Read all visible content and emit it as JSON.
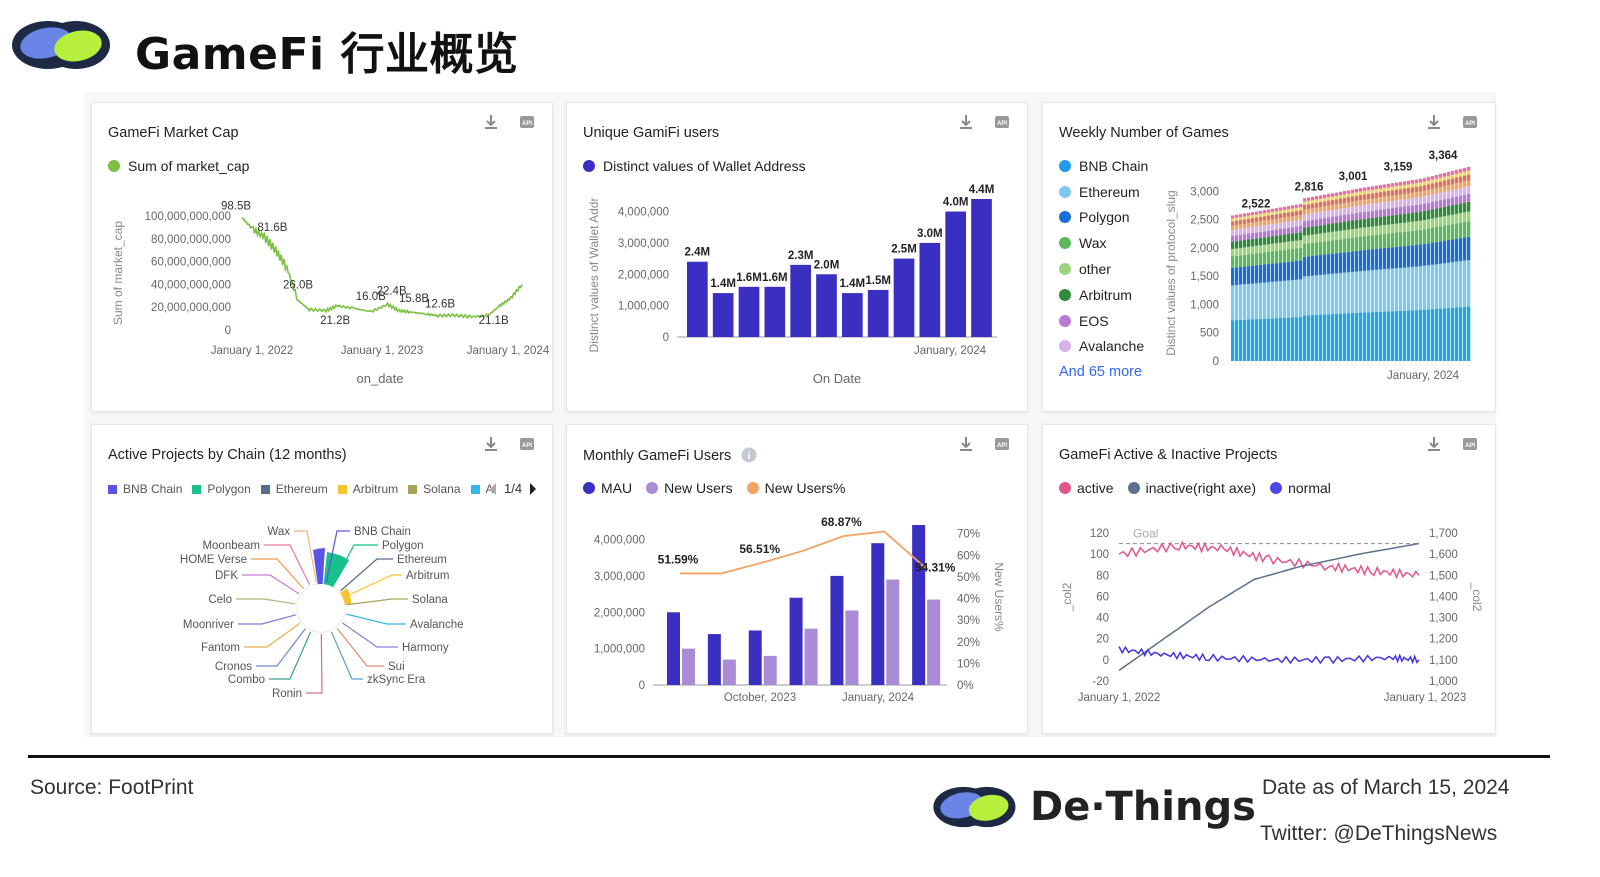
{
  "header": {
    "title": "GameFi 行业概览"
  },
  "footer": {
    "source": "Source: FootPrint",
    "brand": "De·Things",
    "date": "Date as of March 15, 2024",
    "twitter": "Twitter: @DeThingsNews"
  },
  "colors": {
    "green": "#7bc043",
    "indigo": "#3a2fc0",
    "lavender": "#a98bd6",
    "orange": "#f4a261",
    "pink": "#e0578a",
    "slate": "#5d6f8f",
    "blue": "#4433e0"
  },
  "icons": [
    "download-icon",
    "api-icon",
    "info-icon",
    "pager-prev-icon",
    "pager-next-icon"
  ],
  "cards": {
    "market_cap": {
      "title": "GameFi Market Cap",
      "legend": [
        {
          "label": "Sum of market_cap",
          "color": "#7bc043"
        }
      ]
    },
    "unique_users": {
      "title": "Unique GamiFi users",
      "legend": [
        {
          "label": "Distinct values of Wallet Address",
          "color": "#3a2fc0"
        }
      ]
    },
    "weekly_games": {
      "title": "Weekly Number of Games",
      "legend": [
        {
          "label": "BNB Chain",
          "color": "#1f9be8"
        },
        {
          "label": "Ethereum",
          "color": "#7ec8f2"
        },
        {
          "label": "Polygon",
          "color": "#1a6fd6"
        },
        {
          "label": "Wax",
          "color": "#5cb85c"
        },
        {
          "label": "other",
          "color": "#9bd47e"
        },
        {
          "label": "Arbitrum",
          "color": "#2e8b3a"
        },
        {
          "label": "EOS",
          "color": "#b57ad6"
        },
        {
          "label": "Avalanche",
          "color": "#d7b3ea"
        }
      ],
      "more": "And 65 more"
    },
    "active_projects": {
      "title": "Active Projects by Chain (12 months)",
      "legend": [
        {
          "label": "BNB Chain",
          "color": "#5a53e6"
        },
        {
          "label": "Polygon",
          "color": "#18c18a"
        },
        {
          "label": "Ethereum",
          "color": "#5b6b8a"
        },
        {
          "label": "Arbitrum",
          "color": "#f4c430"
        },
        {
          "label": "Solana",
          "color": "#a3a35a"
        },
        {
          "label": "A",
          "color": "#35b6e8"
        }
      ],
      "pager": "1/4"
    },
    "monthly_users": {
      "title": "Monthly GameFi Users",
      "legend": [
        {
          "label": "MAU",
          "color": "#3a2fc0"
        },
        {
          "label": "New Users",
          "color": "#a98bd6"
        },
        {
          "label": "New Users%",
          "color": "#f4a261"
        }
      ]
    },
    "active_inactive": {
      "title": "GameFi Active & Inactive Projects",
      "legend": [
        {
          "label": "active",
          "color": "#e0578a"
        },
        {
          "label": "inactive(right axe)",
          "color": "#5d6f8f"
        },
        {
          "label": "normal",
          "color": "#5046e5"
        }
      ]
    }
  },
  "chart_data": [
    {
      "id": "market_cap",
      "type": "line",
      "title": "GameFi Market Cap",
      "xlabel": "on_date",
      "ylabel": "Sum of market_cap",
      "x_ticks": [
        "January 1, 2022",
        "January 1, 2023",
        "January 1, 2024"
      ],
      "y_ticks": [
        "0",
        "20,000,000,000",
        "40,000,000,000",
        "60,000,000,000",
        "80,000,000,000",
        "100,000,000,000"
      ],
      "ylim": [
        0,
        100000000000
      ],
      "series": [
        {
          "name": "Sum of market_cap",
          "color": "#7bc043",
          "points": [
            [
              0,
              98.5
            ],
            [
              0.04,
              88
            ],
            [
              0.08,
              81.6
            ],
            [
              0.12,
              70
            ],
            [
              0.16,
              55
            ],
            [
              0.2,
              26
            ],
            [
              0.24,
              18
            ],
            [
              0.3,
              17
            ],
            [
              0.34,
              21.2
            ],
            [
              0.4,
              19
            ],
            [
              0.46,
              16
            ],
            [
              0.52,
              22.4
            ],
            [
              0.56,
              17
            ],
            [
              0.6,
              15.8
            ],
            [
              0.66,
              14
            ],
            [
              0.7,
              12.6
            ],
            [
              0.76,
              13
            ],
            [
              0.82,
              11.5
            ],
            [
              0.88,
              13
            ],
            [
              0.92,
              21.1
            ],
            [
              0.96,
              28
            ],
            [
              1.0,
              40
            ]
          ]
        }
      ],
      "annotations": [
        {
          "label": "98.5B",
          "at": 0
        },
        {
          "label": "81.6B",
          "at": 0.08
        },
        {
          "label": "26.0B",
          "at": 0.2
        },
        {
          "label": "21.2B",
          "at": 0.34
        },
        {
          "label": "16.0B",
          "at": 0.46
        },
        {
          "label": "22.4B",
          "at": 0.52
        },
        {
          "label": "15.8B",
          "at": 0.6
        },
        {
          "label": "12.6B",
          "at": 0.7
        },
        {
          "label": "21.1B",
          "at": 0.92
        }
      ]
    },
    {
      "id": "unique_users",
      "type": "bar",
      "xlabel": "On Date",
      "ylabel": "Distinct values of Wallet Addr",
      "x_ticks": [
        "January, 2024"
      ],
      "y_ticks": [
        "0",
        "1,000,000",
        "2,000,000",
        "3,000,000",
        "4,000,000"
      ],
      "ylim": [
        0,
        4400000
      ],
      "values": [
        2400000,
        1400000,
        1600000,
        1600000,
        2300000,
        2000000,
        1400000,
        1500000,
        2500000,
        3000000,
        4000000,
        4400000
      ],
      "labels": [
        "2.4M",
        "1.4M",
        "1.6M",
        "1.6M",
        "2.3M",
        "2.0M",
        "1.4M",
        "1.5M",
        "2.5M",
        "3.0M",
        "4.0M",
        "4.4M"
      ]
    },
    {
      "id": "weekly_games",
      "type": "bar",
      "stacked": true,
      "ylabel": "Distinct values of protocol_slug",
      "x_ticks": [
        "January, 2024"
      ],
      "y_ticks": [
        "0",
        "500",
        "1,000",
        "1,500",
        "2,000",
        "2,500",
        "3,000"
      ],
      "ylim": [
        0,
        3500
      ],
      "data_labels": [
        "2,522",
        "2,816",
        "3,001",
        "3,159",
        "3,364"
      ],
      "totals": [
        2522,
        2816,
        3001,
        3159,
        3364
      ]
    },
    {
      "id": "active_projects",
      "type": "pie",
      "categories": [
        "BNB Chain",
        "Polygon",
        "Ethereum",
        "Arbitrum",
        "Solana",
        "Avalanche",
        "Harmony",
        "Sui",
        "zkSync Era",
        "Ronin",
        "Combo",
        "Cronos",
        "Fantom",
        "Moonriver",
        "Celo",
        "DFK",
        "HOME Verse",
        "Moonbeam",
        "Wax"
      ]
    },
    {
      "id": "monthly_users",
      "type": "bar",
      "ylabel_right": "New Users%",
      "x_ticks": [
        "October, 2023",
        "January, 2024"
      ],
      "y_ticks": [
        "0",
        "1,000,000",
        "2,000,000",
        "3,000,000",
        "4,000,000"
      ],
      "y2_ticks": [
        "0%",
        "10%",
        "20%",
        "30%",
        "40%",
        "50%",
        "60%",
        "70%"
      ],
      "ylim": [
        0,
        4400000
      ],
      "y2lim": [
        0,
        74
      ],
      "series": [
        {
          "name": "MAU",
          "values": [
            2000000,
            1400000,
            1500000,
            2400000,
            3000000,
            3900000,
            4400000
          ]
        },
        {
          "name": "New Users",
          "values": [
            1000000,
            700000,
            800000,
            1550000,
            2050000,
            2900000,
            2350000
          ]
        },
        {
          "name": "New Users%",
          "values": [
            51.59,
            51.59,
            56.51,
            62,
            68.87,
            71,
            54.31
          ]
        }
      ],
      "line_labels": [
        {
          "label": "51.59%",
          "at": 0
        },
        {
          "label": "56.51%",
          "at": 2
        },
        {
          "label": "68.87%",
          "at": 4
        },
        {
          "label": "54.31%",
          "at": 6
        }
      ]
    },
    {
      "id": "active_inactive",
      "type": "line",
      "ylabel": "_col2",
      "ylabel_right": "_col2",
      "x_ticks": [
        "January 1, 2022",
        "January 1, 2023"
      ],
      "y_ticks": [
        "-20",
        "0",
        "20",
        "40",
        "60",
        "80",
        "100",
        "120"
      ],
      "y2_ticks": [
        "1,000",
        "1,100",
        "1,200",
        "1,300",
        "1,400",
        "1,500",
        "1,600",
        "1,700"
      ],
      "ylim": [
        -20,
        120
      ],
      "y2lim": [
        1000,
        1700
      ],
      "goal": {
        "label": "Goal",
        "value": 110
      },
      "series": [
        {
          "name": "active",
          "points": [
            [
              0,
              100
            ],
            [
              0.2,
              108
            ],
            [
              0.35,
              105
            ],
            [
              0.5,
              95
            ],
            [
              0.7,
              88
            ],
            [
              0.85,
              84
            ],
            [
              1,
              80
            ]
          ]
        },
        {
          "name": "inactive(right axe)",
          "points": [
            [
              0,
              1050
            ],
            [
              0.15,
              1200
            ],
            [
              0.3,
              1350
            ],
            [
              0.45,
              1480
            ],
            [
              0.6,
              1540
            ],
            [
              0.8,
              1600
            ],
            [
              1,
              1650
            ]
          ]
        },
        {
          "name": "normal",
          "points": [
            [
              0,
              10
            ],
            [
              0.15,
              5
            ],
            [
              0.3,
              2
            ],
            [
              0.5,
              0
            ],
            [
              0.7,
              0
            ],
            [
              0.9,
              2
            ],
            [
              1,
              0
            ]
          ]
        }
      ]
    }
  ]
}
